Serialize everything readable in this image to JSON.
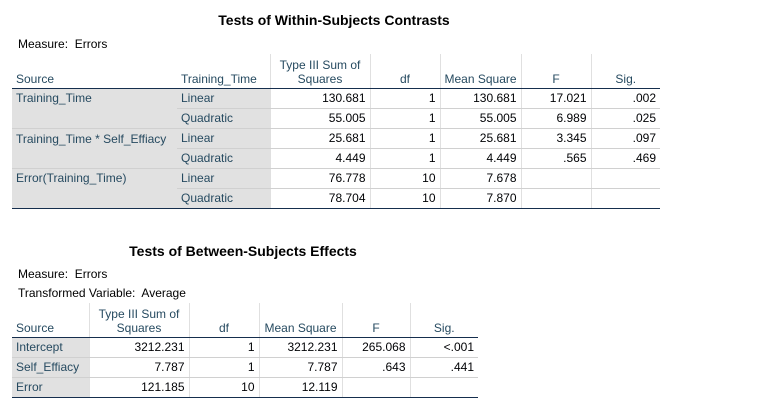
{
  "within": {
    "title": "Tests of Within-Subjects Contrasts",
    "measure_label": "Measure:",
    "measure_value": "Errors",
    "headers": {
      "source": "Source",
      "factor": "Training_Time",
      "ss": "Type III Sum of Squares",
      "df": "df",
      "ms": "Mean Square",
      "f": "F",
      "sig": "Sig."
    },
    "rows": [
      {
        "source": "Training_Time",
        "factor": "Linear",
        "ss": "130.681",
        "df": "1",
        "ms": "130.681",
        "f": "17.021",
        "sig": ".002"
      },
      {
        "source": "",
        "factor": "Quadratic",
        "ss": "55.005",
        "df": "1",
        "ms": "55.005",
        "f": "6.989",
        "sig": ".025"
      },
      {
        "source": "Training_Time * Self_Effiacy",
        "factor": "Linear",
        "ss": "25.681",
        "df": "1",
        "ms": "25.681",
        "f": "3.345",
        "sig": ".097"
      },
      {
        "source": "",
        "factor": "Quadratic",
        "ss": "4.449",
        "df": "1",
        "ms": "4.449",
        "f": ".565",
        "sig": ".469"
      },
      {
        "source": "Error(Training_Time)",
        "factor": "Linear",
        "ss": "76.778",
        "df": "10",
        "ms": "7.678",
        "f": "",
        "sig": ""
      },
      {
        "source": "",
        "factor": "Quadratic",
        "ss": "78.704",
        "df": "10",
        "ms": "7.870",
        "f": "",
        "sig": ""
      }
    ]
  },
  "between": {
    "title": "Tests of Between-Subjects Effects",
    "measure_label": "Measure:",
    "measure_value": "Errors",
    "transformed_label": "Transformed Variable:",
    "transformed_value": "Average",
    "headers": {
      "source": "Source",
      "ss": "Type III Sum of Squares",
      "df": "df",
      "ms": "Mean Square",
      "f": "F",
      "sig": "Sig."
    },
    "rows": [
      {
        "source": "Intercept",
        "ss": "3212.231",
        "df": "1",
        "ms": "3212.231",
        "f": "265.068",
        "sig": "<.001"
      },
      {
        "source": "Self_Effiacy",
        "ss": "7.787",
        "df": "1",
        "ms": "7.787",
        "f": ".643",
        "sig": ".441"
      },
      {
        "source": "Error",
        "ss": "121.185",
        "df": "10",
        "ms": "12.119",
        "f": "",
        "sig": ""
      }
    ]
  }
}
